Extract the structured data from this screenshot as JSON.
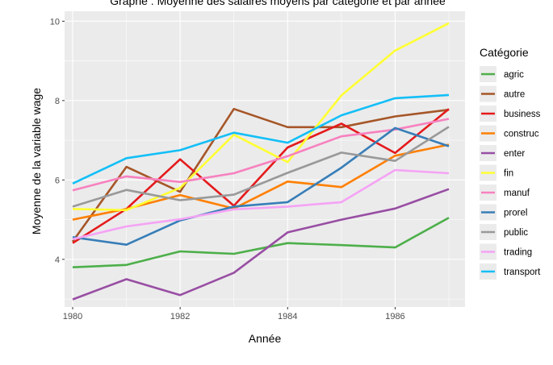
{
  "chart_data": {
    "type": "line",
    "title": "Graphe : Moyenne des salaires moyens par catégorie et par année",
    "xlabel": "Année",
    "ylabel": "Moyenne de la variable wage",
    "xlim": [
      1979.85,
      1987.3
    ],
    "ylim": [
      2.8,
      10.25
    ],
    "x_ticks": [
      1980,
      1982,
      1984,
      1986
    ],
    "y_ticks": [
      4,
      6,
      8,
      10
    ],
    "grid": true,
    "legend_title": "Catégorie",
    "legend_position": "right",
    "x": [
      1980,
      1981,
      1982,
      1983,
      1984,
      1985,
      1986,
      1987
    ],
    "series": [
      {
        "name": "agric",
        "color": "#4daf4a",
        "values": [
          3.8,
          3.86,
          4.2,
          4.14,
          4.41,
          4.36,
          4.3,
          5.05
        ]
      },
      {
        "name": "autre",
        "color": "#a65628",
        "values": [
          4.45,
          6.33,
          5.7,
          7.79,
          7.33,
          7.33,
          7.6,
          7.77
        ]
      },
      {
        "name": "business",
        "color": "#e41a1c",
        "values": [
          4.41,
          5.27,
          6.52,
          5.35,
          6.82,
          7.42,
          6.68,
          7.79
        ]
      },
      {
        "name": "construc",
        "color": "#ff7f00",
        "values": [
          5.0,
          5.27,
          5.62,
          5.28,
          5.96,
          5.82,
          6.61,
          6.89
        ]
      },
      {
        "name": "enter",
        "color": "#984ea3",
        "values": [
          2.99,
          3.5,
          3.1,
          3.66,
          4.68,
          5.0,
          5.28,
          5.77
        ]
      },
      {
        "name": "fin",
        "color": "#ffff33",
        "values": [
          5.27,
          5.24,
          5.8,
          7.14,
          6.45,
          8.13,
          9.26,
          9.95
        ]
      },
      {
        "name": "manuf",
        "color": "#f781bf",
        "values": [
          5.74,
          6.09,
          5.95,
          6.17,
          6.6,
          7.1,
          7.27,
          7.54
        ]
      },
      {
        "name": "prorel",
        "color": "#377eb8",
        "values": [
          4.56,
          4.37,
          4.98,
          5.33,
          5.44,
          6.31,
          7.31,
          6.85
        ]
      },
      {
        "name": "public",
        "color": "#999999",
        "values": [
          5.33,
          5.75,
          5.49,
          5.63,
          6.18,
          6.69,
          6.48,
          7.34
        ]
      },
      {
        "name": "trading",
        "color": "#f5a3f5",
        "values": [
          4.51,
          4.83,
          5.01,
          5.26,
          5.33,
          5.44,
          6.25,
          6.17
        ]
      },
      {
        "name": "transport",
        "color": "#13bff7",
        "values": [
          5.91,
          6.55,
          6.75,
          7.19,
          6.94,
          7.63,
          8.06,
          8.14
        ]
      }
    ]
  }
}
